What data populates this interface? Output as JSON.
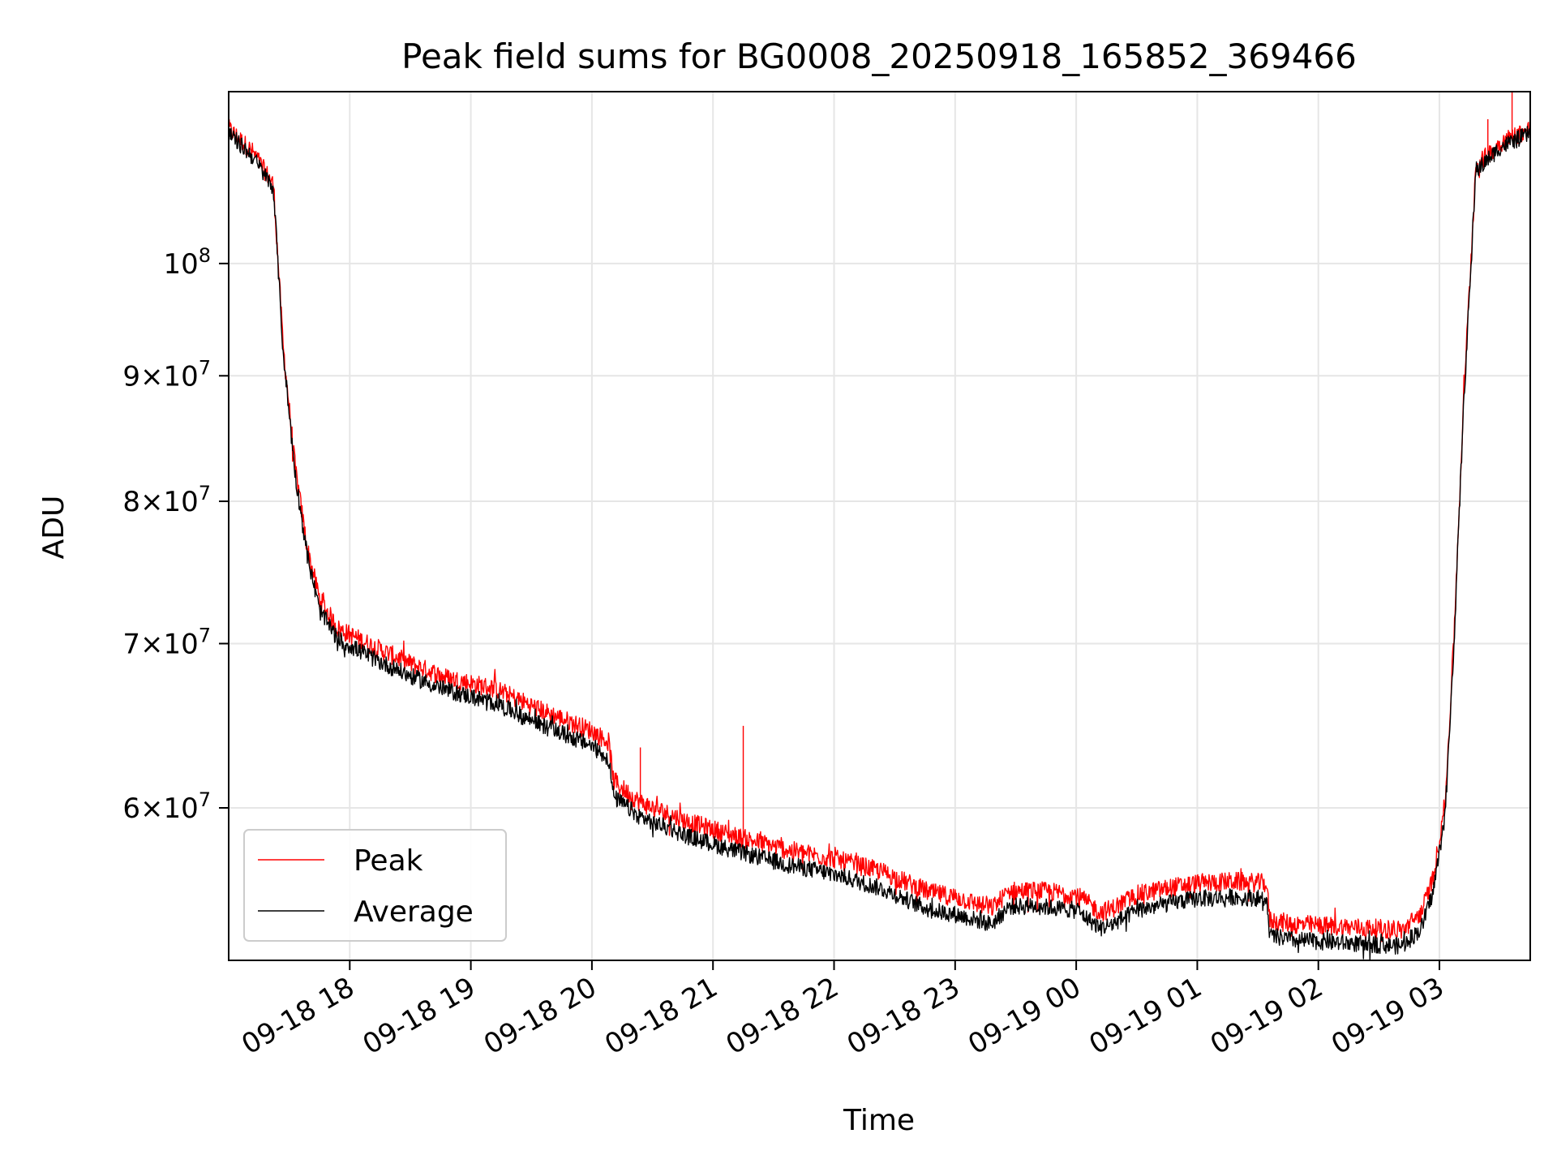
{
  "chart_data": {
    "type": "line",
    "title": "Peak field sums for BG0008_20250918_165852_369466",
    "xlabel": "Time",
    "ylabel": "ADU",
    "xlim_hours": [
      17.0,
      27.75
    ],
    "ylim": [
      52000000,
      117500000
    ],
    "y_scale": "log",
    "grid": true,
    "legend_position": "lower-left",
    "x_ticks": [
      {
        "hour": 18,
        "label": "09-18 18"
      },
      {
        "hour": 19,
        "label": "09-18 19"
      },
      {
        "hour": 20,
        "label": "09-18 20"
      },
      {
        "hour": 21,
        "label": "09-18 21"
      },
      {
        "hour": 22,
        "label": "09-18 22"
      },
      {
        "hour": 23,
        "label": "09-18 23"
      },
      {
        "hour": 24,
        "label": "09-19 00"
      },
      {
        "hour": 25,
        "label": "09-19 01"
      },
      {
        "hour": 26,
        "label": "09-19 02"
      },
      {
        "hour": 27,
        "label": "09-19 03"
      }
    ],
    "y_ticks": [
      {
        "value": 60000000,
        "mantissa": "6",
        "exp": "7",
        "mode": "sci"
      },
      {
        "value": 70000000,
        "mantissa": "7",
        "exp": "7",
        "mode": "sci"
      },
      {
        "value": 80000000,
        "mantissa": "8",
        "exp": "7",
        "mode": "sci"
      },
      {
        "value": 90000000,
        "mantissa": "9",
        "exp": "7",
        "mode": "sci"
      },
      {
        "value": 100000000,
        "mantissa": "10",
        "exp": "8",
        "mode": "pow"
      }
    ],
    "times_hours": [
      17.0,
      17.2,
      17.37,
      17.45,
      17.55,
      17.65,
      17.75,
      17.9,
      18.2,
      18.5,
      18.8,
      19.2,
      19.6,
      20.0,
      20.14,
      20.18,
      20.4,
      20.8,
      21.2,
      21.6,
      22.0,
      22.4,
      22.8,
      23.0,
      23.3,
      23.45,
      23.7,
      24.0,
      24.2,
      24.3,
      24.5,
      24.8,
      25.0,
      25.3,
      25.57,
      25.6,
      25.8,
      26.1,
      26.4,
      26.7,
      26.85,
      26.95,
      27.05,
      27.12,
      27.2,
      27.3,
      27.5,
      27.75
    ],
    "series": [
      {
        "name": "Peak",
        "color": "#ff0000",
        "values": [
          113500000,
          111000000,
          107700000,
          92500000,
          82500000,
          76500000,
          73000000,
          71000000,
          69800000,
          68700000,
          67800000,
          67100000,
          65700000,
          64500000,
          63800000,
          61500000,
          60300000,
          59200000,
          58400000,
          57700000,
          57200000,
          56500000,
          55400000,
          55200000,
          54600000,
          55500000,
          55500000,
          55300000,
          54400000,
          54600000,
          55300000,
          55700000,
          55900000,
          56000000,
          55900000,
          54000000,
          53800000,
          53700000,
          53600000,
          53500000,
          54400000,
          56200000,
          60500000,
          70500000,
          88000000,
          109500000,
          112000000,
          113500000
        ],
        "spikes": [
          {
            "hour": 21.25,
            "value": 64800000
          },
          {
            "hour": 20.4,
            "value": 63500000
          },
          {
            "hour": 27.6,
            "value": 117500000
          },
          {
            "hour": 27.4,
            "value": 114500000
          }
        ]
      },
      {
        "name": "Average",
        "color": "#000000",
        "values": [
          113000000,
          110500000,
          107300000,
          92000000,
          82000000,
          76000000,
          72200000,
          70300000,
          69000000,
          67900000,
          67000000,
          66200000,
          64800000,
          63600000,
          62800000,
          60600000,
          59500000,
          58400000,
          57600000,
          56900000,
          56400000,
          55600000,
          54500000,
          54300000,
          53800000,
          54700000,
          54700000,
          54500000,
          53600000,
          53800000,
          54500000,
          54900000,
          55100000,
          55200000,
          55100000,
          53200000,
          53000000,
          52900000,
          52800000,
          52700000,
          53600000,
          55500000,
          59800000,
          70000000,
          87500000,
          109000000,
          111500000,
          113000000
        ]
      }
    ]
  }
}
